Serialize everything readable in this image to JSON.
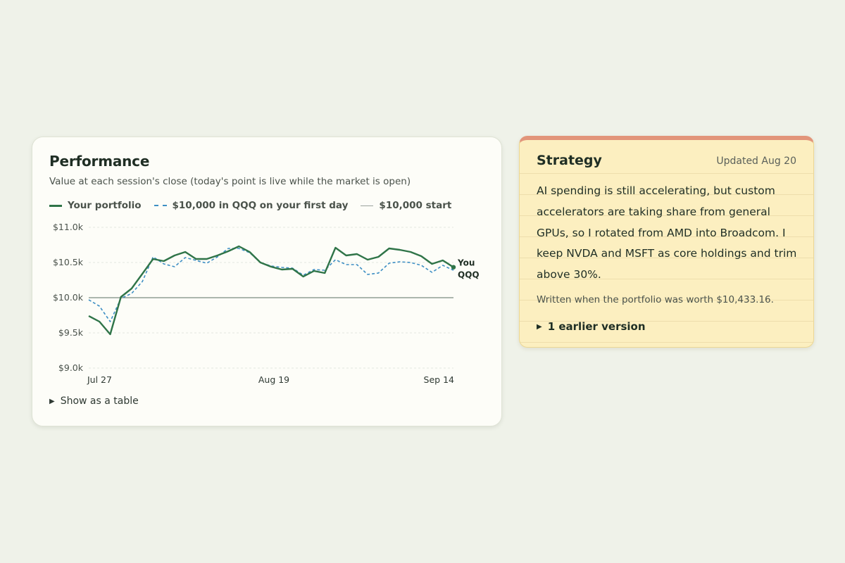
{
  "performance": {
    "title": "Performance",
    "subtitle": "Value at each session's close (today's point is live while the market is open)",
    "legend": {
      "portfolio": "Your portfolio",
      "qqq": "$10,000 in QQQ on your first day",
      "start": "$10,000 start"
    },
    "show_table_label": "Show as a table",
    "end_labels": {
      "portfolio": "You",
      "qqq": "QQQ"
    }
  },
  "chart_data": {
    "type": "line",
    "ylim": [
      9000,
      11000
    ],
    "y_ticks": [
      9000,
      9500,
      10000,
      10500,
      11000
    ],
    "y_tick_labels": [
      "$9.0k",
      "$9.5k",
      "$10.0k",
      "$10.5k",
      "$11.0k"
    ],
    "x_tick_labels": [
      "Jul 27",
      "Aug 19",
      "Sep 14"
    ],
    "baseline": 10000,
    "colors": {
      "portfolio": "#2f7448",
      "qqq": "#3e8fc4",
      "baseline": "#5c6e62",
      "grid": "#e4e6df"
    },
    "series": [
      {
        "name": "Your portfolio",
        "key": "portfolio",
        "values": [
          9740,
          9660,
          9480,
          10010,
          10130,
          10340,
          10550,
          10520,
          10600,
          10650,
          10550,
          10550,
          10600,
          10660,
          10730,
          10650,
          10500,
          10440,
          10400,
          10410,
          10300,
          10380,
          10350,
          10710,
          10600,
          10620,
          10540,
          10580,
          10700,
          10680,
          10650,
          10590,
          10480,
          10530,
          10433
        ]
      },
      {
        "name": "$10,000 in QQQ on your first day",
        "key": "qqq",
        "values": [
          9970,
          9880,
          9660,
          9990,
          10060,
          10230,
          10580,
          10480,
          10440,
          10570,
          10530,
          10490,
          10580,
          10700,
          10700,
          10640,
          10500,
          10450,
          10430,
          10420,
          10320,
          10400,
          10390,
          10540,
          10470,
          10470,
          10330,
          10350,
          10490,
          10510,
          10500,
          10460,
          10360,
          10460,
          10390
        ]
      }
    ]
  },
  "strategy": {
    "title": "Strategy",
    "updated": "Updated Aug 20",
    "body": "AI spending is still accelerating, but custom accelerators are taking share from general GPUs, so I rotated from AMD into Broadcom. I keep NVDA and MSFT as core holdings and trim above 30%.",
    "note": "Written when the portfolio was worth $10,433.16.",
    "earlier_label": "1 earlier version"
  }
}
